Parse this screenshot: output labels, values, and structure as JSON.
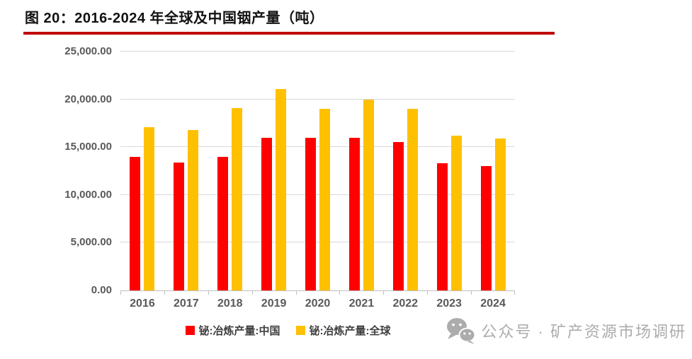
{
  "header": {
    "title": "图 20：2016-2024 年全球及中国铟产量（吨）",
    "underline_color": "#C00000"
  },
  "chart_data": {
    "type": "bar",
    "title": "2016-2024 年全球及中国铟产量（吨）",
    "categories": [
      "2016",
      "2017",
      "2018",
      "2019",
      "2020",
      "2021",
      "2022",
      "2023",
      "2024"
    ],
    "series": [
      {
        "key": "china",
        "name": "铋:冶炼产量:中国",
        "color": "#FF0000",
        "values": [
          14000,
          13400,
          14000,
          16000,
          16000,
          16000,
          15500,
          13300,
          13000
        ]
      },
      {
        "key": "global",
        "name": "铋:冶炼产量:全球",
        "color": "#FFC000",
        "values": [
          17100,
          16800,
          19100,
          21100,
          19000,
          20000,
          19000,
          16200,
          15900
        ]
      }
    ],
    "xlabel": "",
    "ylabel": "",
    "ylim": [
      0,
      25000
    ],
    "ytick_interval": 5000,
    "ytick_labels": [
      "0.00",
      "5,000.00",
      "10,000.00",
      "15,000.00",
      "20,000.00",
      "25,000.00"
    ],
    "grid": true,
    "legend_position": "bottom",
    "gridline_color": "#D9D9D9",
    "axis_label_color": "#595959"
  },
  "watermark": {
    "icon": "wechat-icon",
    "text": "公众号 · 矿产资源市场调研",
    "color": "#ACACAC"
  }
}
